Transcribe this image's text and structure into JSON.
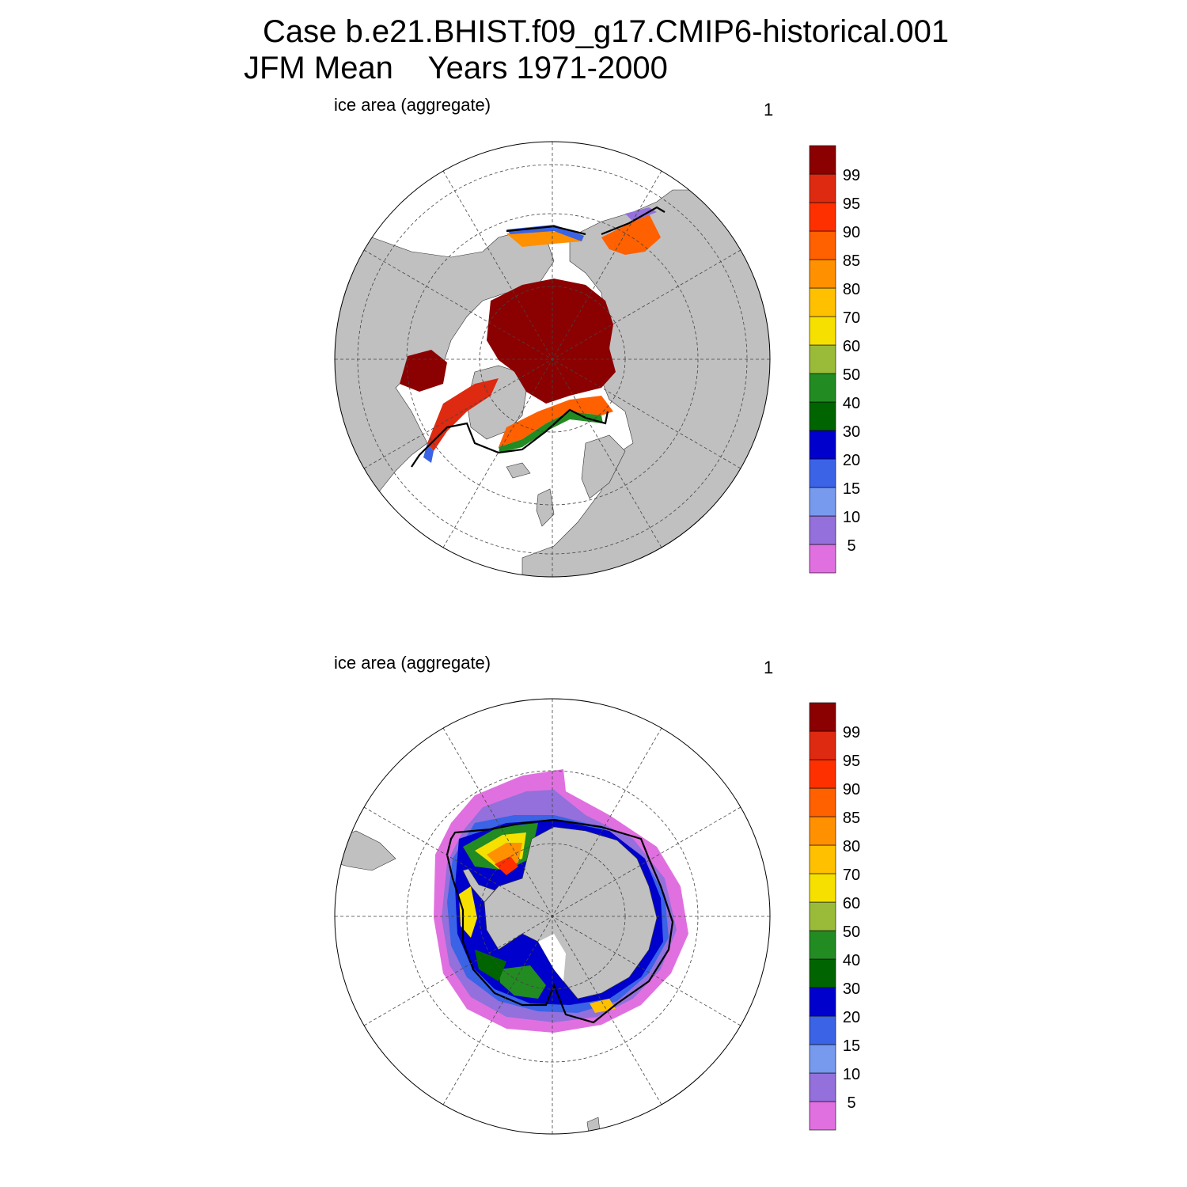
{
  "header": {
    "case_line": "Case b.e21.BHIST.f09_g17.CMIP6-historical.001",
    "period_line": "JFM Mean    Years 1971-2000"
  },
  "colors": {
    "land": "#c0c0c0",
    "ocean": "#ffffff",
    "observed_edge": "#000000",
    "levels": [
      "#e070e0",
      "#9370db",
      "#7799ee",
      "#3a63e6",
      "#0000cc",
      "#006400",
      "#228b22",
      "#9abb3a",
      "#f5e000",
      "#ffc000",
      "#ff9000",
      "#ff6000",
      "#ff3000",
      "#dd2a10",
      "#8b0000"
    ]
  },
  "legend_labels": [
    "5",
    "10",
    "15",
    "20",
    "30",
    "40",
    "50",
    "60",
    "70",
    "80",
    "85",
    "90",
    "95",
    "99"
  ],
  "panels": [
    {
      "id": "north",
      "hemisphere": "Arctic",
      "field_label": "ice area  (aggregate)",
      "panel_number": "1"
    },
    {
      "id": "south",
      "hemisphere": "Antarctic",
      "field_label": "ice area  (aggregate)",
      "panel_number": "1"
    }
  ]
}
